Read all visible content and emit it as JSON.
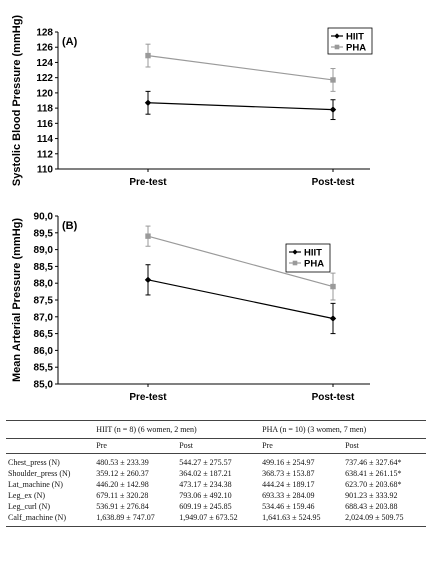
{
  "chart_data": [
    {
      "type": "line",
      "panel_label": "(A)",
      "categories": [
        "Pre-test",
        "Post-test"
      ],
      "ylabel": "Systolic Blood Pressure (mmHg)",
      "ylim": [
        110,
        128
      ],
      "yticks": [
        "110",
        "112",
        "114",
        "116",
        "118",
        "120",
        "122",
        "124",
        "126",
        "128"
      ],
      "legend_position": "top-right",
      "series": [
        {
          "name": "HIIT",
          "marker": "diamond",
          "color": "#000000",
          "values": [
            118.7,
            117.8
          ],
          "error": [
            1.5,
            1.3
          ]
        },
        {
          "name": "PHA",
          "marker": "square",
          "color": "#9a9a9a",
          "values": [
            124.9,
            121.7
          ],
          "error": [
            1.5,
            1.5
          ]
        }
      ]
    },
    {
      "type": "line",
      "panel_label": "(B)",
      "categories": [
        "Pre-test",
        "Post-test"
      ],
      "ylabel": "Mean Arterial Pressure (mmHg)",
      "ylim": [
        85.0,
        90.0
      ],
      "yticks": [
        "85,0",
        "85,5",
        "86,0",
        "86,5",
        "87,0",
        "87,5",
        "88,0",
        "88,5",
        "89,0",
        "89,5",
        "90,0"
      ],
      "legend_position": "top-right",
      "series": [
        {
          "name": "HIIT",
          "marker": "diamond",
          "color": "#000000",
          "values": [
            88.1,
            86.95
          ],
          "error": [
            0.45,
            0.45
          ]
        },
        {
          "name": "PHA",
          "marker": "square",
          "color": "#9a9a9a",
          "values": [
            89.4,
            87.9
          ],
          "error": [
            0.3,
            0.4
          ]
        }
      ]
    }
  ],
  "table": {
    "group_headers": [
      "",
      "HIIT (n = 8) (6 women, 2 men)",
      "PHA (n = 10) (3 women, 7 men)"
    ],
    "sub_headers": [
      "",
      "Pre",
      "Post",
      "Pre",
      "Post"
    ],
    "rows": [
      [
        "Chest_press (N)",
        "480.53 ± 233.39",
        "544.27 ± 275.57",
        "499.16 ± 254.97",
        "737.46 ± 327.64*"
      ],
      [
        "Shoulder_press (N)",
        "359.12 ± 260.37",
        "364.02 ± 187.21",
        "368.73 ± 153.87",
        "638.41 ± 261.15*"
      ],
      [
        "Lat_machine (N)",
        "446.20 ± 142.98",
        "473.17 ± 234.38",
        "444.24 ± 189.17",
        "623.70 ± 203.68*"
      ],
      [
        "Leg_ex (N)",
        "679.11 ± 320.28",
        "793.06 ± 492.10",
        "693.33 ± 284.09",
        "901.23 ± 333.92"
      ],
      [
        "Leg_curl (N)",
        "536.91 ± 276.84",
        "609.19 ± 245.85",
        "534.46 ± 159.46",
        "688.43 ± 203.88"
      ],
      [
        "Calf_machine (N)",
        "1,638.89 ± 747.07",
        "1,949.07 ± 673.52",
        "1,641.63 ± 524.95",
        "2,024.09 ± 509.75"
      ]
    ]
  }
}
